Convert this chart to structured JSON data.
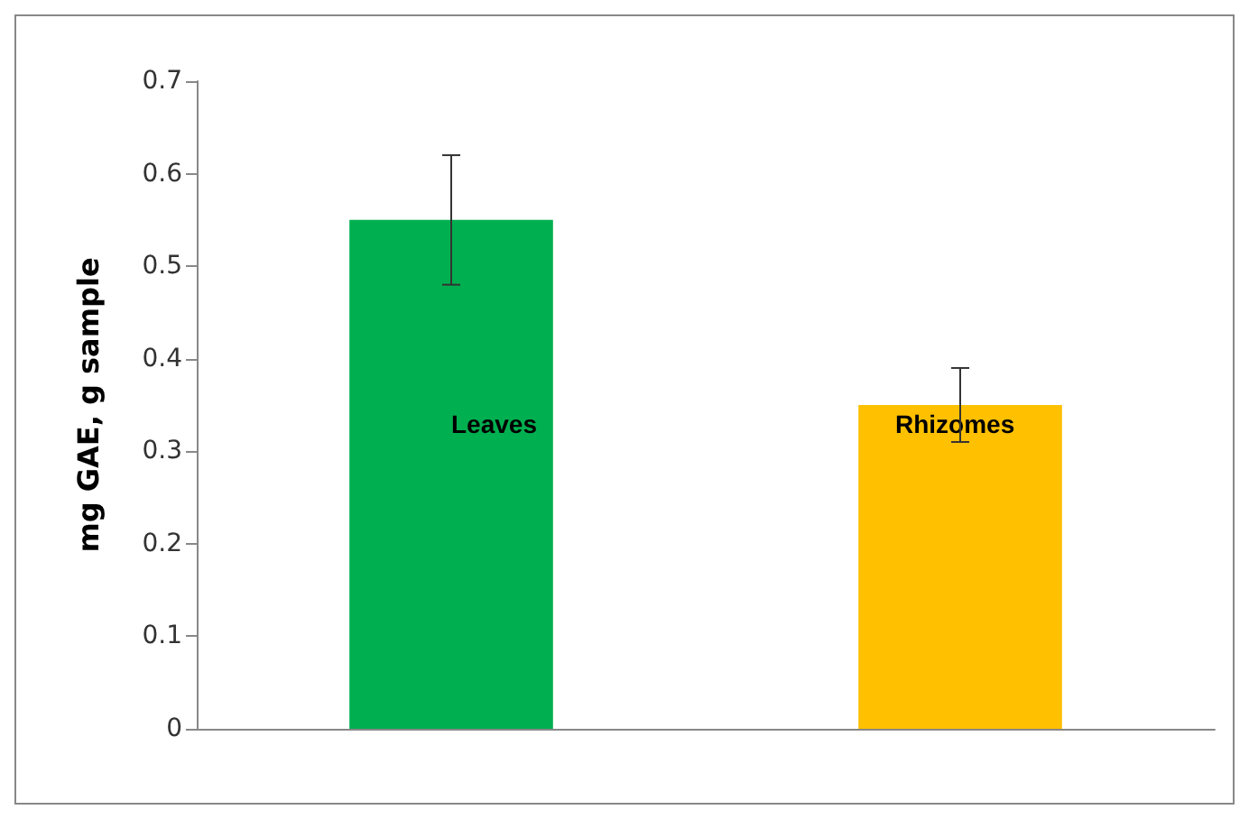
{
  "chart_data": {
    "type": "bar",
    "ylabel": "mg GAE, g sample",
    "categories": [
      "Leaves",
      "Rhizomes"
    ],
    "values": [
      0.55,
      0.35
    ],
    "colors": [
      "#00b050",
      "#ffc000"
    ],
    "errors": [
      0.07,
      0.04
    ],
    "ylim": [
      0,
      0.7
    ],
    "yticks": [
      0,
      0.1,
      0.2,
      0.3,
      0.4,
      0.5,
      0.6,
      0.7
    ],
    "grid": false,
    "tick_labels": "y"
  }
}
